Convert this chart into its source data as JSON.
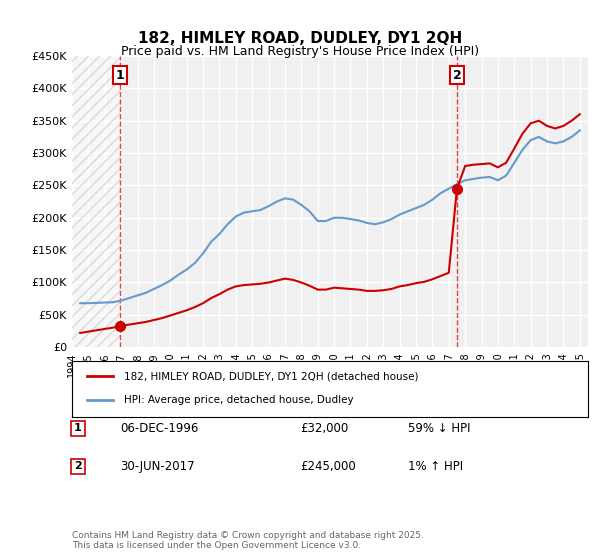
{
  "title": "182, HIMLEY ROAD, DUDLEY, DY1 2QH",
  "subtitle": "Price paid vs. HM Land Registry's House Price Index (HPI)",
  "xlabel": "",
  "ylabel": "",
  "ylim": [
    0,
    450000
  ],
  "yticks": [
    0,
    50000,
    100000,
    150000,
    200000,
    250000,
    300000,
    350000,
    400000,
    450000
  ],
  "ytick_labels": [
    "£0",
    "£50K",
    "£100K",
    "£150K",
    "£200K",
    "£250K",
    "£300K",
    "£350K",
    "£400K",
    "£450K"
  ],
  "background_color": "#ffffff",
  "plot_bg_color": "#f0f0f0",
  "grid_color": "#ffffff",
  "hpi_color": "#6699cc",
  "property_color": "#cc0000",
  "transaction1_date": 1996.92,
  "transaction1_price": 32000,
  "transaction2_date": 2017.5,
  "transaction2_price": 245000,
  "legend_entries": [
    "182, HIMLEY ROAD, DUDLEY, DY1 2QH (detached house)",
    "HPI: Average price, detached house, Dudley"
  ],
  "table_entries": [
    {
      "num": "1",
      "date": "06-DEC-1996",
      "price": "£32,000",
      "hpi": "59% ↓ HPI"
    },
    {
      "num": "2",
      "date": "30-JUN-2017",
      "price": "£245,000",
      "hpi": "1% ↑ HPI"
    }
  ],
  "footer": "Contains HM Land Registry data © Crown copyright and database right 2025.\nThis data is licensed under the Open Government Licence v3.0.",
  "hpi_data": {
    "years": [
      1994.5,
      1995.0,
      1995.5,
      1996.0,
      1996.5,
      1997.0,
      1997.5,
      1998.0,
      1998.5,
      1999.0,
      1999.5,
      2000.0,
      2000.5,
      2001.0,
      2001.5,
      2002.0,
      2002.5,
      2003.0,
      2003.5,
      2004.0,
      2004.5,
      2005.0,
      2005.5,
      2006.0,
      2006.5,
      2007.0,
      2007.5,
      2008.0,
      2008.5,
      2009.0,
      2009.5,
      2010.0,
      2010.5,
      2011.0,
      2011.5,
      2012.0,
      2012.5,
      2013.0,
      2013.5,
      2014.0,
      2014.5,
      2015.0,
      2015.5,
      2016.0,
      2016.5,
      2017.0,
      2017.5,
      2018.0,
      2018.5,
      2019.0,
      2019.5,
      2020.0,
      2020.5,
      2021.0,
      2021.5,
      2022.0,
      2022.5,
      2023.0,
      2023.5,
      2024.0,
      2024.5,
      2025.0
    ],
    "values": [
      68000,
      68000,
      68500,
      69000,
      69500,
      72000,
      76000,
      80000,
      84000,
      90000,
      96000,
      103000,
      112000,
      120000,
      130000,
      145000,
      163000,
      175000,
      190000,
      202000,
      208000,
      210000,
      212000,
      218000,
      225000,
      230000,
      228000,
      220000,
      210000,
      195000,
      195000,
      200000,
      200000,
      198000,
      196000,
      192000,
      190000,
      193000,
      198000,
      205000,
      210000,
      215000,
      220000,
      228000,
      238000,
      245000,
      252000,
      258000,
      260000,
      262000,
      263000,
      258000,
      265000,
      285000,
      305000,
      320000,
      325000,
      318000,
      315000,
      318000,
      325000,
      335000
    ]
  },
  "property_data": {
    "years": [
      1994.5,
      1996.92,
      1997.0,
      1997.5,
      1998.0,
      1998.5,
      1999.0,
      1999.5,
      2000.0,
      2000.5,
      2001.0,
      2001.5,
      2002.0,
      2002.5,
      2003.0,
      2003.5,
      2004.0,
      2004.5,
      2005.0,
      2005.5,
      2006.0,
      2006.5,
      2007.0,
      2007.5,
      2008.0,
      2008.5,
      2009.0,
      2009.5,
      2010.0,
      2010.5,
      2011.0,
      2011.5,
      2012.0,
      2012.5,
      2013.0,
      2013.5,
      2014.0,
      2014.5,
      2015.0,
      2015.5,
      2016.0,
      2016.5,
      2017.0,
      2017.5,
      2018.0,
      2018.5,
      2019.0,
      2019.5,
      2020.0,
      2020.5,
      2021.0,
      2021.5,
      2022.0,
      2022.5,
      2023.0,
      2023.5,
      2024.0,
      2024.5,
      2025.0
    ],
    "values": [
      22000,
      32000,
      33000,
      35000,
      37000,
      39000,
      42000,
      45000,
      49000,
      53000,
      57000,
      62000,
      68000,
      76000,
      82000,
      89000,
      94000,
      96000,
      97000,
      98000,
      100000,
      103000,
      106000,
      104000,
      100000,
      95000,
      89000,
      89000,
      92000,
      91000,
      90000,
      89000,
      87000,
      87000,
      88000,
      90000,
      94000,
      96000,
      99000,
      101000,
      105000,
      110000,
      115000,
      245000,
      280000,
      282000,
      283000,
      284000,
      278000,
      285000,
      307000,
      330000,
      346000,
      350000,
      342000,
      338000,
      342000,
      350000,
      360000
    ]
  }
}
